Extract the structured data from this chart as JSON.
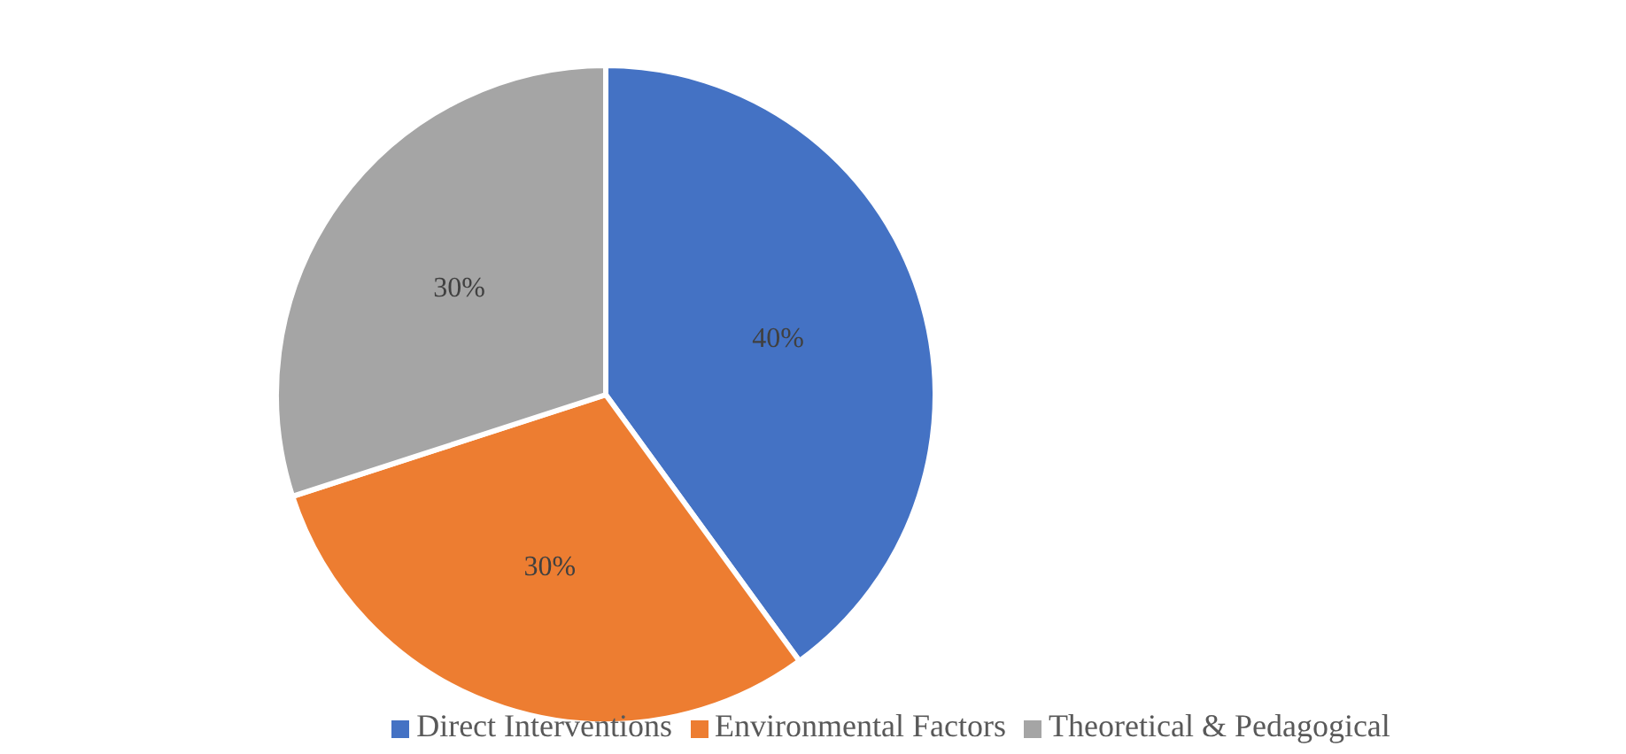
{
  "chart_data": {
    "type": "pie",
    "categories": [
      "Direct Interventions",
      "Environmental Factors",
      "Theoretical & Pedagogical"
    ],
    "values": [
      40,
      30,
      30
    ],
    "colors": [
      "#4472c4",
      "#ed7d31",
      "#a5a5a5"
    ],
    "value_labels": [
      "40%",
      "30%",
      "30%"
    ],
    "legend": "bottom"
  }
}
